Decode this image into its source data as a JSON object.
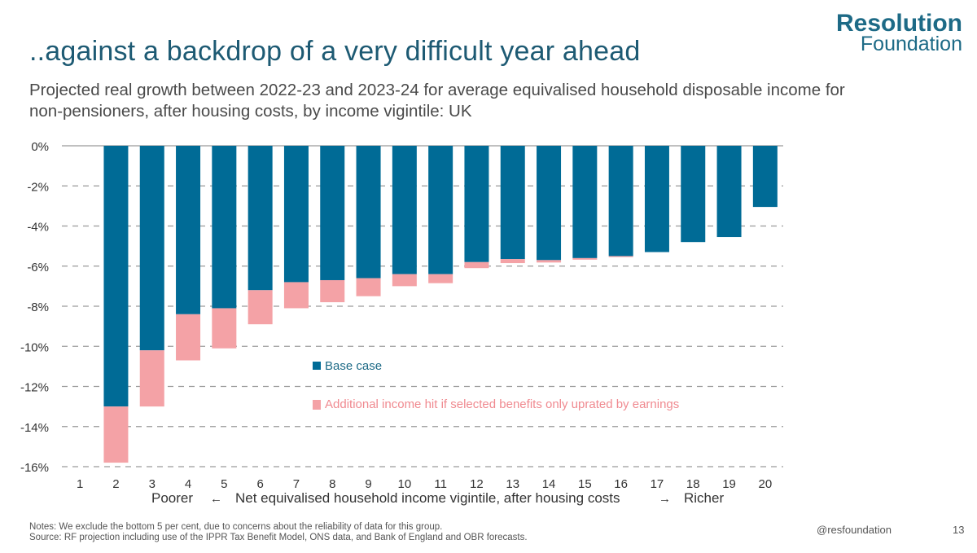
{
  "header": {
    "title": "..against a backdrop of a very difficult year ahead",
    "subtitle": "Projected real growth between 2022-23 and 2023-24 for average equivalised household disposable income for non-pensioners, after housing costs, by income vigintile: UK"
  },
  "logo": {
    "line1": "Resolution",
    "line2": "Foundation"
  },
  "footer": {
    "notes_line1": "Notes: We exclude the bottom 5 per cent, due to concerns about the reliability of data for this group.",
    "notes_line2": "Source: RF projection including use of the IPPR Tax Benefit Model, ONS data, and Bank of England and OBR forecasts.",
    "handle": "@resfoundation",
    "page_number": "13"
  },
  "colors": {
    "base": "#006b96",
    "additional": "#f4a2a6",
    "grid": "#9a9a9a",
    "legend_base_text": "#1d6a86",
    "legend_additional_text": "#f08a90"
  },
  "chart_data": {
    "type": "bar",
    "stacked": true,
    "categories": [
      "1",
      "2",
      "3",
      "4",
      "5",
      "6",
      "7",
      "8",
      "9",
      "10",
      "11",
      "12",
      "13",
      "14",
      "15",
      "16",
      "17",
      "18",
      "19",
      "20"
    ],
    "series": [
      {
        "name": "Base case",
        "values": [
          null,
          -13.0,
          -10.2,
          -8.4,
          -8.1,
          -7.2,
          -6.8,
          -6.7,
          -6.6,
          -6.4,
          -6.4,
          -5.8,
          -5.65,
          -5.7,
          -5.6,
          -5.5,
          -5.3,
          -4.8,
          -4.55,
          -3.05
        ]
      },
      {
        "name": "Additional income hit if selected benefits only uprated by earnings",
        "values": [
          null,
          -2.8,
          -2.8,
          -2.3,
          -2.0,
          -1.7,
          -1.3,
          -1.1,
          -0.9,
          -0.6,
          -0.45,
          -0.3,
          -0.2,
          -0.12,
          -0.08,
          -0.05,
          0,
          0,
          0,
          0
        ]
      }
    ],
    "ylim": [
      -16,
      0
    ],
    "yticks": [
      0,
      -2,
      -4,
      -6,
      -8,
      -10,
      -12,
      -14,
      -16
    ],
    "ytick_labels": [
      "0%",
      "-2%",
      "-4%",
      "-6%",
      "-8%",
      "-10%",
      "-12%",
      "-14%",
      "-16%"
    ],
    "xlabel": {
      "left": "Poorer",
      "left_arrow": "←",
      "center": "Net equivalised household income vigintile, after housing costs",
      "right_arrow": "→",
      "right": "Richer"
    },
    "legend": {
      "position": "center",
      "base_label": "Base case",
      "additional_label": "Additional income hit if selected benefits only uprated by earnings"
    },
    "grid": "horizontal-dashed"
  }
}
